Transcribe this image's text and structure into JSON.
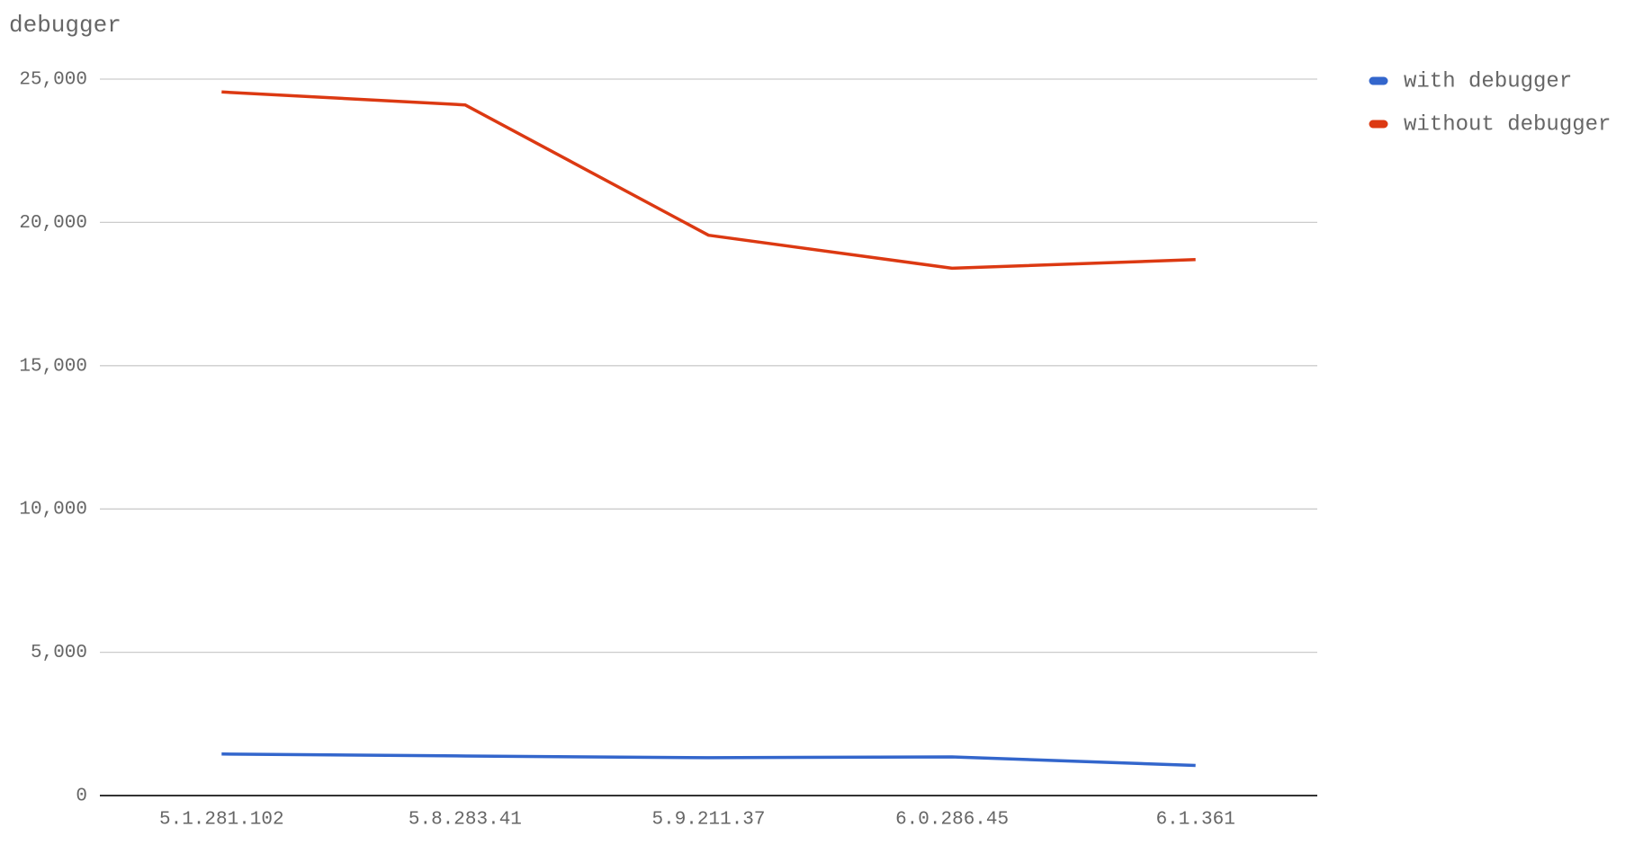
{
  "chart_data": {
    "type": "line",
    "title": "debugger",
    "categories": [
      "5.1.281.102",
      "5.8.283.41",
      "5.9.211.37",
      "6.0.286.45",
      "6.1.361"
    ],
    "series": [
      {
        "name": "with debugger",
        "color": "#3366cc",
        "values": [
          1450,
          1380,
          1320,
          1350,
          1050
        ]
      },
      {
        "name": "without debugger",
        "color": "#dc3912",
        "values": [
          24550,
          24100,
          19550,
          18400,
          18700
        ]
      }
    ],
    "ylim": [
      0,
      25000
    ],
    "yticks": [
      0,
      {
        "value": 5000,
        "label": "5,000"
      },
      {
        "value": 10000,
        "label": "10,000"
      },
      {
        "value": 15000,
        "label": "15,000"
      },
      {
        "value": 20000,
        "label": "20,000"
      },
      {
        "value": 25000,
        "label": "25,000"
      }
    ],
    "grid": true,
    "legend": "right"
  }
}
